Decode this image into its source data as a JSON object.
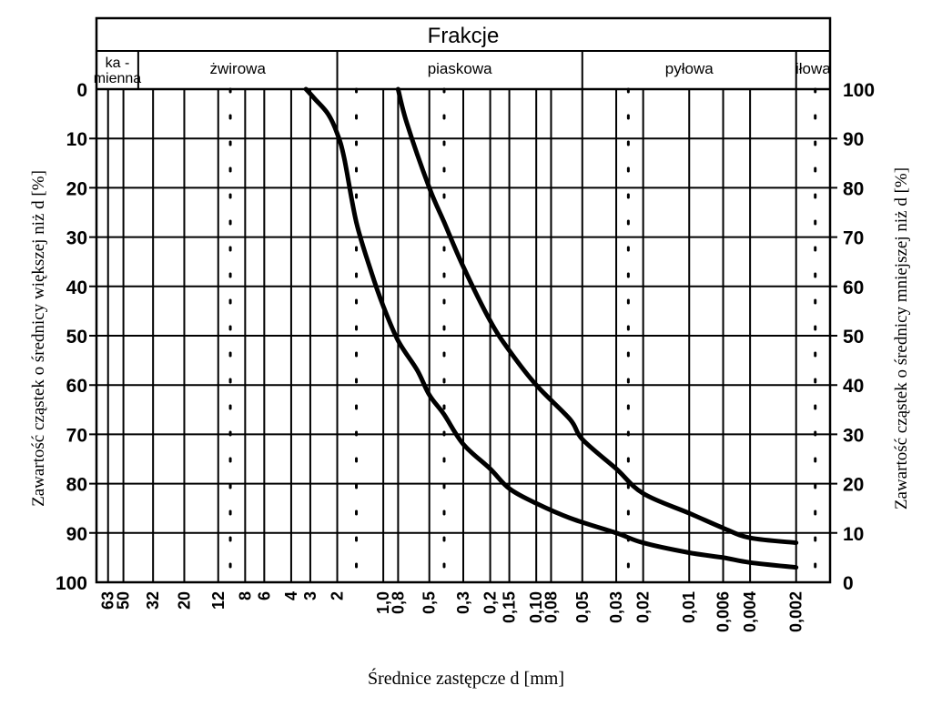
{
  "chart_data": {
    "type": "line",
    "title": "Frakcje",
    "fractions": [
      {
        "label_lines": [
          "ka -",
          "mienna"
        ],
        "d_from": 75,
        "d_to": 40
      },
      {
        "label_lines": [
          "żwirowa"
        ],
        "d_from": 40,
        "d_to": 2
      },
      {
        "label_lines": [
          "piaskowa"
        ],
        "d_from": 2,
        "d_to": 0.05
      },
      {
        "label_lines": [
          "pyłowa"
        ],
        "d_from": 0.05,
        "d_to": 0.002
      },
      {
        "label_lines": [
          "iłowa"
        ],
        "d_from": 0.002,
        "d_to": 0.0012
      }
    ],
    "xlabel": "Średnice zastępcze d [mm]",
    "ylabel_left": "Zawartość cząstek o średnicy większej niż d [%]",
    "ylabel_right": "Zawartość cząstek o średnicy mniejszej niż d [%]",
    "x_scale": "log",
    "x_reversed": true,
    "x_ticks": [
      {
        "label": "63",
        "d": 63
      },
      {
        "label": "50",
        "d": 50
      },
      {
        "label": "32",
        "d": 32
      },
      {
        "label": "20",
        "d": 20
      },
      {
        "label": "12",
        "d": 12
      },
      {
        "label": "8",
        "d": 8
      },
      {
        "label": "6",
        "d": 6
      },
      {
        "label": "4",
        "d": 4
      },
      {
        "label": "3",
        "d": 3
      },
      {
        "label": "2",
        "d": 2
      },
      {
        "label": "1,0",
        "d": 1.0
      },
      {
        "label": "0,8",
        "d": 0.8
      },
      {
        "label": "0,5",
        "d": 0.5
      },
      {
        "label": "0,3",
        "d": 0.3
      },
      {
        "label": "0,2",
        "d": 0.2
      },
      {
        "label": "0,15",
        "d": 0.15
      },
      {
        "label": "0,10",
        "d": 0.1
      },
      {
        "label": "0,08",
        "d": 0.08
      },
      {
        "label": "0,05",
        "d": 0.05
      },
      {
        "label": "0,03",
        "d": 0.03
      },
      {
        "label": "0,02",
        "d": 0.02
      },
      {
        "label": "0,01",
        "d": 0.01
      },
      {
        "label": "0,006",
        "d": 0.006
      },
      {
        "label": "0,004",
        "d": 0.004
      },
      {
        "label": "0,002",
        "d": 0.002
      }
    ],
    "x_lines": [
      63,
      50,
      32,
      20,
      12,
      8,
      6,
      4,
      3,
      2,
      1.0,
      0.8,
      0.5,
      0.3,
      0.2,
      0.15,
      0.1,
      0.08,
      0.05,
      0.03,
      0.02,
      0.01,
      0.006,
      0.004,
      0.002
    ],
    "x_dotted_lines": [
      10,
      1.5,
      0.4,
      0.025,
      0.0015
    ],
    "y_left_ticks": [
      "0",
      "10",
      "20",
      "30",
      "40",
      "50",
      "60",
      "70",
      "80",
      "90",
      "100"
    ],
    "y_right_ticks": [
      "100",
      "90",
      "80",
      "70",
      "60",
      "50",
      "40",
      "30",
      "20",
      "10",
      "0"
    ],
    "ylim_left": [
      0,
      100
    ],
    "grid": true,
    "series": [
      {
        "x": [
          3.2,
          2.8,
          2.3,
          2.0,
          1.8,
          1.5,
          1.2,
          1.0,
          0.8,
          0.6,
          0.5,
          0.4,
          0.3,
          0.2,
          0.15,
          0.1,
          0.06,
          0.03,
          0.02,
          0.01,
          0.006,
          0.004,
          0.002
        ],
        "y_left": [
          0,
          2,
          5,
          9,
          14,
          27,
          37,
          44,
          51,
          57,
          62,
          66,
          72,
          77,
          81,
          84,
          87,
          90,
          92,
          94,
          95,
          96,
          97
        ]
      },
      {
        "x": [
          0.8,
          0.7,
          0.5,
          0.4,
          0.3,
          0.2,
          0.15,
          0.1,
          0.06,
          0.05,
          0.03,
          0.02,
          0.01,
          0.006,
          0.004,
          0.002
        ],
        "y_left": [
          0,
          7,
          20,
          27,
          36,
          47,
          53,
          60,
          67,
          71,
          77,
          82,
          86,
          89,
          91,
          92
        ]
      }
    ]
  }
}
